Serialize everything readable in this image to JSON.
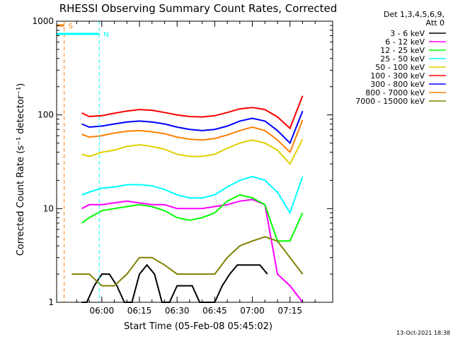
{
  "chart_data": {
    "type": "line",
    "title": "RHESSI Observing Summary Count Rates, Corrected",
    "xlabel": "Start Time (05-Feb-08 05:45:02)",
    "ylabel": "Corrected Count Rate (s⁻¹ detector⁻¹)",
    "ylog": true,
    "ylim": [
      1,
      1000
    ],
    "xlim_min": [
      -3,
      107
    ],
    "x_ticks": [
      {
        "min": 15,
        "label": "06:00"
      },
      {
        "min": 30,
        "label": "06:15"
      },
      {
        "min": 45,
        "label": "06:30"
      },
      {
        "min": 60,
        "label": "06:45"
      },
      {
        "min": 75,
        "label": "07:00"
      },
      {
        "min": 90,
        "label": "07:15"
      }
    ],
    "y_ticks": [
      {
        "value": 1,
        "label": "1"
      },
      {
        "value": 10,
        "label": "10"
      },
      {
        "value": 100,
        "label": "100"
      },
      {
        "value": 1000,
        "label": "1000"
      }
    ],
    "legend_header": [
      "Det 1,3,4,5,6,9,",
      "Att 0"
    ],
    "legend_placement": "right",
    "series": [
      {
        "name": "3 - 6 keV",
        "color": "#000000",
        "x": [
          7,
          9,
          12,
          15,
          18,
          21,
          24,
          27,
          30,
          33,
          36,
          39,
          42,
          45,
          48,
          51,
          54,
          57,
          60,
          63,
          66,
          69,
          72,
          75,
          78,
          81
        ],
        "y": [
          1,
          1,
          1.5,
          2,
          2,
          1.5,
          1,
          1,
          2,
          2.5,
          2,
          1,
          1,
          1.5,
          1.5,
          1.5,
          1,
          1,
          1,
          1.5,
          2,
          2.5,
          2.5,
          2.5,
          2.5,
          2
        ]
      },
      {
        "name": "6 - 12 keV",
        "color": "#ff00ff",
        "x": [
          7,
          10,
          15,
          20,
          25,
          30,
          35,
          40,
          45,
          50,
          55,
          60,
          65,
          70,
          75,
          80,
          85,
          90,
          95
        ],
        "y": [
          10,
          11,
          11,
          11.5,
          12,
          11.5,
          11,
          11,
          10,
          10,
          10,
          10.5,
          11,
          12,
          12.5,
          11,
          2,
          1.5,
          1
        ]
      },
      {
        "name": "12 - 25 keV",
        "color": "#00ff00",
        "x": [
          7,
          10,
          15,
          20,
          25,
          30,
          35,
          40,
          45,
          50,
          55,
          60,
          65,
          70,
          75,
          80,
          85,
          90,
          95
        ],
        "y": [
          7,
          8,
          9.5,
          10,
          10.5,
          11,
          10.5,
          9.5,
          8,
          7.5,
          8,
          9,
          12,
          14,
          13,
          11,
          4.5,
          4.5,
          9
        ]
      },
      {
        "name": "25 - 50 keV",
        "color": "#00ffff",
        "x": [
          7,
          10,
          15,
          20,
          25,
          30,
          35,
          40,
          45,
          50,
          55,
          60,
          65,
          70,
          75,
          80,
          85,
          90,
          95
        ],
        "y": [
          14,
          15,
          16.5,
          17,
          18,
          18,
          17.5,
          16,
          14,
          13,
          13,
          14,
          17,
          20,
          22,
          20,
          15,
          9,
          22
        ]
      },
      {
        "name": "50 - 100 keV",
        "color": "#e0d000",
        "x": [
          7,
          10,
          15,
          20,
          25,
          30,
          35,
          40,
          45,
          50,
          55,
          60,
          65,
          70,
          75,
          80,
          85,
          90,
          95
        ],
        "y": [
          38,
          36,
          40,
          42,
          46,
          48,
          46,
          43,
          38,
          36,
          36,
          38,
          44,
          50,
          54,
          50,
          42,
          30,
          55
        ]
      },
      {
        "name": "100 - 300 keV",
        "color": "#ff0000",
        "x": [
          7,
          10,
          15,
          20,
          25,
          30,
          35,
          40,
          45,
          50,
          55,
          60,
          65,
          70,
          75,
          80,
          85,
          90,
          95
        ],
        "y": [
          105,
          96,
          98,
          104,
          110,
          114,
          112,
          106,
          100,
          96,
          95,
          98,
          106,
          116,
          120,
          114,
          95,
          72,
          160
        ]
      },
      {
        "name": "300 - 800 keV",
        "color": "#0000ff",
        "x": [
          7,
          10,
          15,
          20,
          25,
          30,
          35,
          40,
          45,
          50,
          55,
          60,
          65,
          70,
          75,
          80,
          85,
          90,
          95
        ],
        "y": [
          80,
          74,
          76,
          80,
          84,
          86,
          84,
          80,
          74,
          70,
          68,
          70,
          76,
          86,
          92,
          86,
          68,
          50,
          110
        ]
      },
      {
        "name": "800 - 7000 keV",
        "color": "#ff8000",
        "x": [
          7,
          10,
          15,
          20,
          25,
          30,
          35,
          40,
          45,
          50,
          55,
          60,
          65,
          70,
          75,
          80,
          85,
          90,
          95
        ],
        "y": [
          62,
          58,
          60,
          64,
          67,
          68,
          66,
          63,
          58,
          55,
          54,
          56,
          61,
          68,
          74,
          68,
          54,
          40,
          88
        ]
      },
      {
        "name": "7000 - 15000 keV",
        "color": "#808000",
        "x": [
          3,
          7,
          10,
          15,
          20,
          25,
          30,
          35,
          40,
          45,
          50,
          55,
          60,
          65,
          70,
          75,
          80,
          85,
          90,
          95
        ],
        "y": [
          2,
          2,
          2,
          1.5,
          1.5,
          2,
          3,
          3,
          2.5,
          2,
          2,
          2,
          2,
          3,
          4,
          4.5,
          5,
          4.5,
          3,
          2
        ]
      }
    ],
    "markers": [
      {
        "label": "S",
        "color": "#ff8000",
        "x_start": -3,
        "x_end": 0
      },
      {
        "label": "N",
        "color": "#00ffff",
        "x_start": -3,
        "x_end": 14
      }
    ],
    "footer": "13-Oct-2021 18:38"
  }
}
